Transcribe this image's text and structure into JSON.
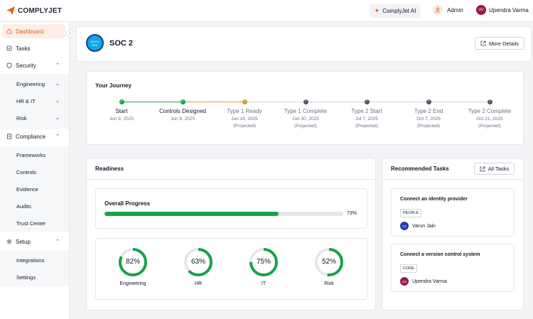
{
  "brand": {
    "name": "COMPLYJET"
  },
  "topbar": {
    "ai_button": "ComplyJet AI",
    "admin_label": "Admin",
    "user_initials": "UV",
    "user_name": "Upendra Varma"
  },
  "sidebar": {
    "items": [
      {
        "label": "Dashboard",
        "icon": "home-icon",
        "active": true
      },
      {
        "label": "Tasks",
        "icon": "tasks-icon"
      },
      {
        "label": "Security",
        "icon": "shield-icon"
      },
      {
        "label": "Engineering"
      },
      {
        "label": "HR & IT"
      },
      {
        "label": "Risk"
      },
      {
        "label": "Compliance",
        "icon": "document-icon"
      },
      {
        "label": "Frameworks"
      },
      {
        "label": "Controls"
      },
      {
        "label": "Evidence"
      },
      {
        "label": "Audits"
      },
      {
        "label": "Trust Center"
      },
      {
        "label": "Setup",
        "icon": "gear-icon"
      },
      {
        "label": "Integrations"
      },
      {
        "label": "Settings"
      }
    ]
  },
  "header": {
    "title": "SOC 2",
    "badge_text": "AICPA SOC",
    "more_details": "More Details"
  },
  "journey": {
    "title": "Your Journey",
    "stages": [
      {
        "name": "Start",
        "date": "Jun 9, 2025",
        "status": "done"
      },
      {
        "name": "Controls Designed",
        "date": "Jun 9, 2025",
        "status": "done"
      },
      {
        "name": "Type 1 Ready",
        "date": "Jun 16, 2025",
        "projected": "(Projected)",
        "status": "current"
      },
      {
        "name": "Type 1 Complete",
        "date": "Jun 30, 2025",
        "projected": "(Projected)",
        "status": "pending"
      },
      {
        "name": "Type 2 Start",
        "date": "Jul 7, 2025",
        "projected": "(Projected)",
        "status": "pending"
      },
      {
        "name": "Type 2 End",
        "date": "Oct 7, 2025",
        "projected": "(Projected)",
        "status": "pending"
      },
      {
        "name": "Type 2 Complete",
        "date": "Oct 21, 2025",
        "projected": "(Projected)",
        "status": "pending"
      }
    ]
  },
  "readiness": {
    "title": "Readiness",
    "overall_label": "Overall Progress",
    "overall_value": 73,
    "overall_text": "73%",
    "gauges": [
      {
        "label": "Engineering",
        "value": 82,
        "text": "82%"
      },
      {
        "label": "HR",
        "value": 63,
        "text": "63%"
      },
      {
        "label": "IT",
        "value": 75,
        "text": "75%"
      },
      {
        "label": "Risk",
        "value": 52,
        "text": "52%"
      }
    ]
  },
  "tasks": {
    "title": "Recommended Tasks",
    "all_button": "All Tasks",
    "items": [
      {
        "title": "Connect an identity provider",
        "tag": "PEOPLE",
        "assignee": "Varun Jain",
        "initials": "VJ",
        "avatar_color": "#1e40af"
      },
      {
        "title": "Connect a version control system",
        "tag": "CODE",
        "assignee": "Upendra Varma",
        "initials": "UV",
        "avatar_color": "#9d174d"
      }
    ]
  },
  "colors": {
    "accent": "#ea580c",
    "success": "#16a34a",
    "warning": "#d89a1f",
    "pending": "#4b5563"
  }
}
